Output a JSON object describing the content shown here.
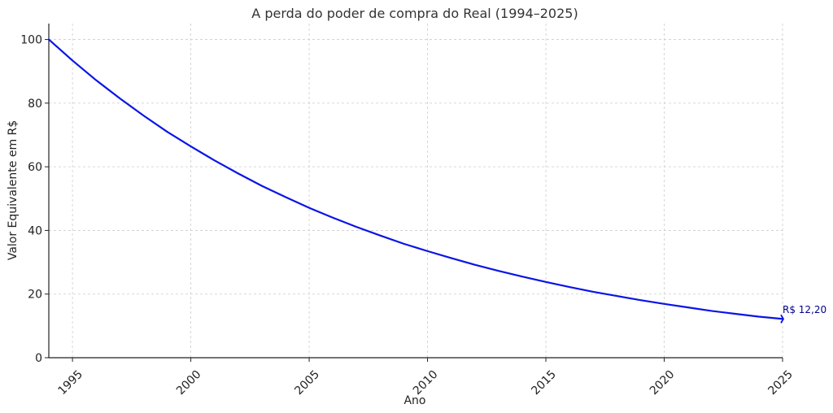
{
  "chart_data": {
    "type": "line",
    "title": "A perda do poder de compra do Real (1994–2025)",
    "xlabel": "Ano",
    "ylabel": "Valor Equivalente em R$",
    "xlim": [
      1994,
      2025
    ],
    "ylim": [
      0,
      105
    ],
    "xticks": [
      1995,
      2000,
      2005,
      2010,
      2015,
      2020,
      2025
    ],
    "yticks": [
      0,
      20,
      40,
      60,
      80,
      100
    ],
    "grid": true,
    "line_color": "#0a14e6",
    "annotation_color": "#00008b",
    "series": [
      {
        "x": [
          1994,
          1995,
          1996,
          1997,
          1998,
          1999,
          2000,
          2001,
          2002,
          2003,
          2004,
          2005,
          2006,
          2007,
          2008,
          2009,
          2010,
          2011,
          2012,
          2013,
          2014,
          2015,
          2016,
          2017,
          2018,
          2019,
          2020,
          2021,
          2022,
          2023,
          2024,
          2025
        ],
        "values": [
          100,
          93.4,
          87.2,
          81.5,
          76.1,
          71.0,
          66.4,
          62.0,
          57.9,
          54.0,
          50.5,
          47.1,
          44.0,
          41.1,
          38.4,
          35.8,
          33.5,
          31.3,
          29.2,
          27.3,
          25.5,
          23.8,
          22.2,
          20.7,
          19.4,
          18.1,
          16.9,
          15.8,
          14.7,
          13.8,
          12.9,
          12.2
        ]
      }
    ],
    "annotation": {
      "text": "R$ 12,20",
      "x": 2025,
      "y": 12.2
    }
  }
}
